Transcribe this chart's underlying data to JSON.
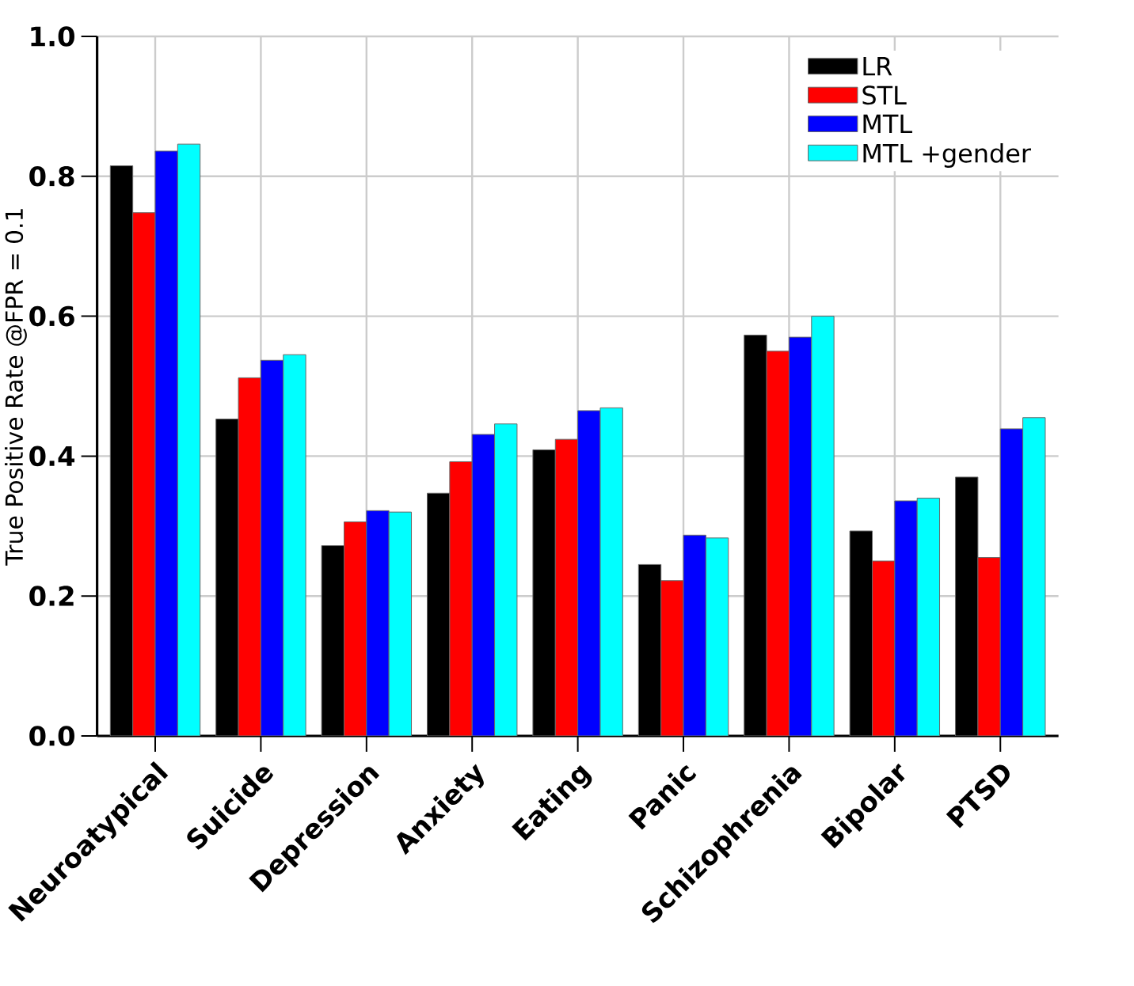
{
  "chart_data": {
    "type": "bar",
    "ylabel": "True Positive Rate @FPR = 0.1",
    "categories": [
      "Neuroatypical",
      "Suicide",
      "Depression",
      "Anxiety",
      "Eating",
      "Panic",
      "Schizophrenia",
      "Bipolar",
      "PTSD"
    ],
    "series": [
      {
        "name": "LR",
        "color": "#000000",
        "values": [
          0.815,
          0.453,
          0.272,
          0.347,
          0.409,
          0.245,
          0.573,
          0.293,
          0.37
        ]
      },
      {
        "name": "STL",
        "color": "#ff0000",
        "values": [
          0.748,
          0.512,
          0.306,
          0.392,
          0.424,
          0.222,
          0.55,
          0.25,
          0.255
        ]
      },
      {
        "name": "MTL",
        "color": "#0000ff",
        "values": [
          0.836,
          0.537,
          0.322,
          0.431,
          0.465,
          0.287,
          0.57,
          0.336,
          0.439
        ]
      },
      {
        "name": "MTL +gender",
        "color": "#00ffff",
        "values": [
          0.846,
          0.545,
          0.32,
          0.446,
          0.469,
          0.283,
          0.6,
          0.34,
          0.455
        ]
      }
    ],
    "ylim": [
      0,
      1.0
    ],
    "yticks": [
      {
        "value": 0,
        "label": "0.0"
      },
      {
        "value": 0.2,
        "label": "0.2"
      },
      {
        "value": 0.4,
        "label": "0.4"
      },
      {
        "value": 0.6,
        "label": "0.6"
      },
      {
        "value": 0.8,
        "label": "0.8"
      },
      {
        "value": 1.0,
        "label": "1.0"
      }
    ],
    "grid": true,
    "legend": "top right"
  }
}
